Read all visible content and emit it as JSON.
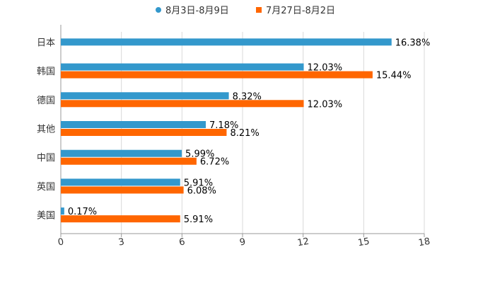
{
  "chart_data": {
    "type": "bar",
    "orientation": "horizontal",
    "title": "",
    "xlabel": "",
    "ylabel": "",
    "categories": [
      "日本",
      "韩国",
      "德国",
      "其他",
      "中国",
      "英国",
      "美国"
    ],
    "series": [
      {
        "name": "8月3日-8月9日",
        "color": "#3398CC",
        "values": [
          16.38,
          12.03,
          8.32,
          7.18,
          5.99,
          5.91,
          0.17
        ],
        "labels": [
          "16.38%",
          "12.03%",
          "8.32%",
          "7.18%",
          "5.99%",
          "5.91%",
          "0.17%"
        ]
      },
      {
        "name": "7月27日-8月2日",
        "color": "#FF6600",
        "values": [
          null,
          15.44,
          12.03,
          8.21,
          6.72,
          6.08,
          5.91
        ],
        "labels": [
          "",
          "15.44%",
          "12.03%",
          "8.21%",
          "6.72%",
          "6.08%",
          "5.91%"
        ]
      }
    ],
    "xlim": [
      0,
      18
    ],
    "xticks": [
      "0",
      "3",
      "6",
      "9",
      "12",
      "15",
      "18"
    ],
    "grid": true,
    "legend_position": "top"
  }
}
